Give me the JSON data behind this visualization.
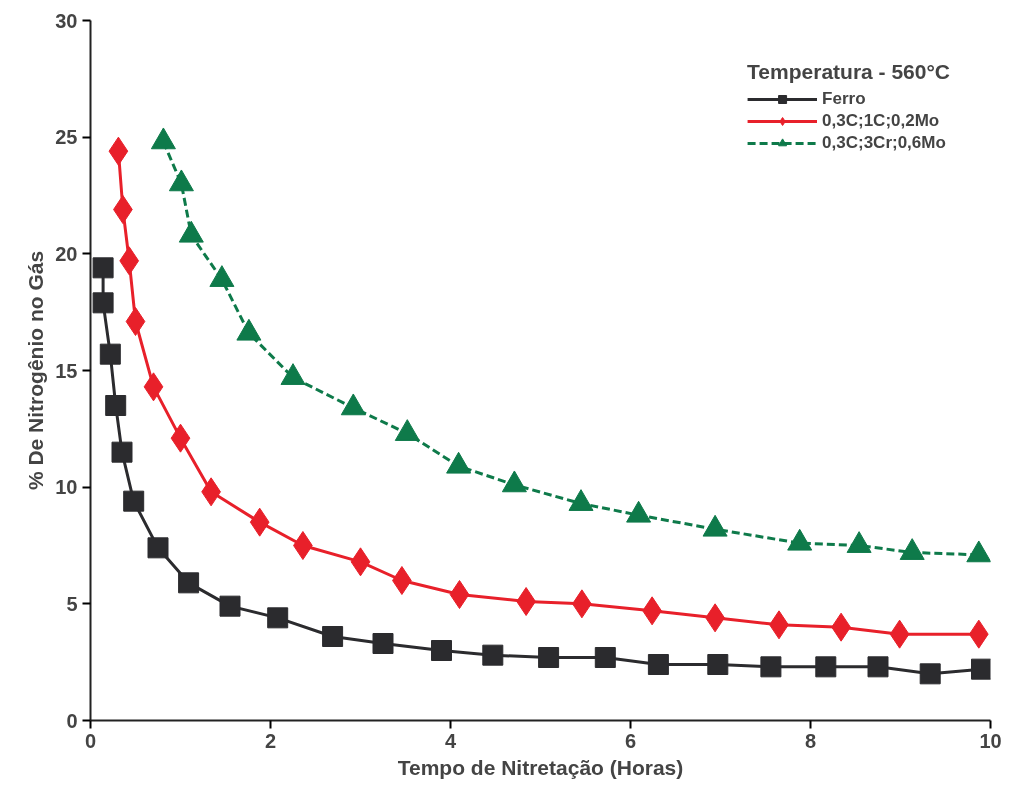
{
  "chart_data": {
    "type": "line",
    "xlabel": "Tempo de Nitretação (Horas)",
    "ylabel": "% De Nitrogênio no Gás",
    "legend_title": "Temperatura - 560°C",
    "legend": "top right",
    "grid": false,
    "xlim": [
      0,
      10
    ],
    "xticks": [
      0,
      2,
      4,
      6,
      8,
      10
    ],
    "ylim": [
      0,
      30
    ],
    "yticks": [
      0,
      5,
      10,
      15,
      20,
      25,
      30
    ],
    "series": [
      {
        "name": "Ferro",
        "color": "#2b2b2e",
        "marker": "square",
        "line_style": "solid",
        "x": [
          0.14,
          0.14,
          0.22,
          0.28,
          0.35,
          0.48,
          0.75,
          1.09,
          1.55,
          2.08,
          2.69,
          3.25,
          3.9,
          4.47,
          5.09,
          5.72,
          6.31,
          6.97,
          7.56,
          8.17,
          8.75,
          9.33,
          9.9
        ],
        "values": [
          19.4,
          17.9,
          15.7,
          13.5,
          11.5,
          9.4,
          7.4,
          5.9,
          4.9,
          4.4,
          3.6,
          3.3,
          3.0,
          2.8,
          2.7,
          2.7,
          2.4,
          2.4,
          2.3,
          2.3,
          2.3,
          2.0,
          2.2
        ]
      },
      {
        "name": "0,3C;1C;0,2Mo",
        "color": "#e8202a",
        "marker": "diamond",
        "line_style": "solid",
        "x": [
          0.31,
          0.36,
          0.43,
          0.5,
          0.7,
          1.0,
          1.34,
          1.88,
          2.36,
          3.0,
          3.46,
          4.1,
          4.84,
          5.46,
          6.24,
          6.94,
          7.65,
          8.34,
          8.99,
          9.87
        ],
        "values": [
          24.4,
          21.9,
          19.7,
          17.1,
          14.3,
          12.1,
          9.8,
          8.5,
          7.5,
          6.8,
          6.0,
          5.4,
          5.1,
          5.0,
          4.7,
          4.4,
          4.1,
          4.0,
          3.7,
          3.7
        ]
      },
      {
        "name": "0,3C;3Cr;0,6Mo",
        "color": "#0e7a4a",
        "marker": "triangle",
        "line_style": "dashed",
        "x": [
          0.81,
          1.01,
          1.12,
          1.46,
          1.76,
          2.25,
          2.92,
          3.52,
          4.09,
          4.71,
          5.45,
          6.09,
          6.94,
          7.88,
          8.54,
          9.13,
          9.87
        ],
        "values": [
          24.8,
          23.0,
          20.8,
          18.9,
          16.6,
          14.7,
          13.4,
          12.3,
          10.9,
          10.1,
          9.3,
          8.8,
          8.2,
          7.6,
          7.5,
          7.2,
          7.1
        ]
      }
    ]
  }
}
